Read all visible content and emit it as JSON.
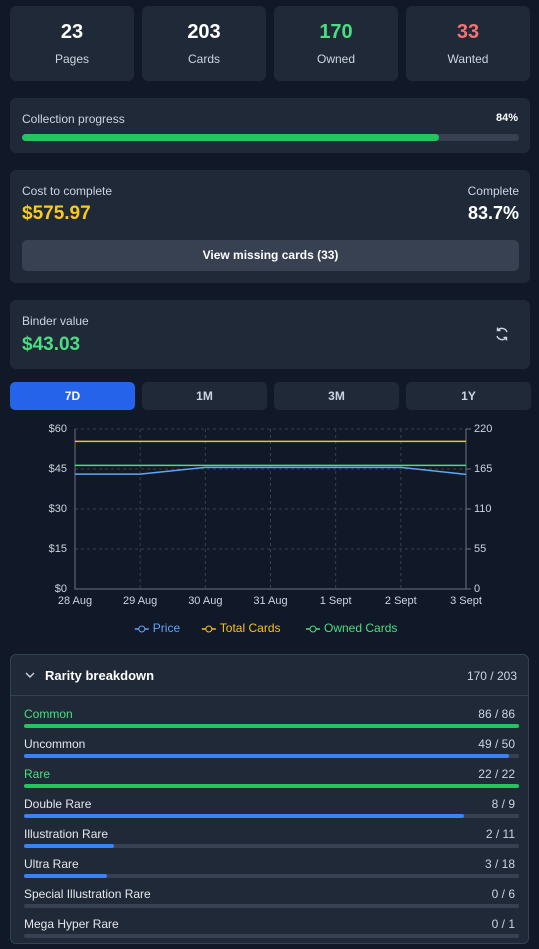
{
  "stats": [
    {
      "value": 23,
      "label": "Pages",
      "color": "#ffffff"
    },
    {
      "value": 203,
      "label": "Cards",
      "color": "#ffffff"
    },
    {
      "value": 170,
      "label": "Owned",
      "color": "#4ade80"
    },
    {
      "value": 33,
      "label": "Wanted",
      "color": "#f87171"
    }
  ],
  "progress": {
    "label": "Collection progress",
    "value": 84,
    "value_label": "84%"
  },
  "cost": {
    "label": "Cost to complete",
    "value": "$575.97",
    "complete_label": "Complete",
    "complete_value": "83.7%",
    "button": "View missing cards (33)"
  },
  "binder": {
    "label": "Binder value",
    "value": "$43.03"
  },
  "tabs": {
    "items": [
      "7D",
      "1M",
      "3M",
      "1Y"
    ],
    "active": 0
  },
  "chart_data": {
    "type": "line",
    "x": [
      "28 Aug",
      "29 Aug",
      "30 Aug",
      "31 Aug",
      "1 Sept",
      "2 Sept",
      "3 Sept"
    ],
    "series": [
      {
        "name": "Price",
        "color": "#60a5fa",
        "values": [
          43.1,
          43.1,
          45.6,
          45.6,
          45.6,
          45.6,
          43.0
        ]
      },
      {
        "name": "Total Cards",
        "color": "#fbbf24",
        "axis": "y2",
        "values": [
          203,
          203,
          203,
          203,
          203,
          203,
          203
        ]
      },
      {
        "name": "Owned Cards",
        "color": "#4ade80",
        "axis": "y2",
        "values": [
          170,
          170,
          170,
          170,
          170,
          170,
          170
        ]
      }
    ],
    "ylim": [
      0,
      60
    ],
    "yticks": [
      {
        "value": 0,
        "label": "$0"
      },
      {
        "value": 15,
        "label": "$15"
      },
      {
        "value": 30,
        "label": "$30"
      },
      {
        "value": 45,
        "label": "$45"
      },
      {
        "value": 60,
        "label": "$60"
      }
    ],
    "y2lim": [
      0,
      220
    ],
    "y2ticks": [
      0,
      55,
      110,
      165,
      220
    ],
    "grid": true,
    "legend": "bottom"
  },
  "rarity": {
    "title": "Rarity breakdown",
    "total": "170 / 203",
    "rows": [
      {
        "name": "Common",
        "count_label": "86 / 86",
        "owned": 86,
        "total": 86
      },
      {
        "name": "Uncommon",
        "count_label": "49 / 50",
        "owned": 49,
        "total": 50
      },
      {
        "name": "Rare",
        "count_label": "22 / 22",
        "owned": 22,
        "total": 22
      },
      {
        "name": "Double Rare",
        "count_label": "8 / 9",
        "owned": 8,
        "total": 9
      },
      {
        "name": "Illustration Rare",
        "count_label": "2 / 11",
        "owned": 2,
        "total": 11
      },
      {
        "name": "Ultra Rare",
        "count_label": "3 / 18",
        "owned": 3,
        "total": 18
      },
      {
        "name": "Special Illustration Rare",
        "count_label": "0 / 6",
        "owned": 0,
        "total": 6
      },
      {
        "name": "Mega Hyper Rare",
        "count_label": "0 / 1",
        "owned": 0,
        "total": 1
      }
    ]
  }
}
